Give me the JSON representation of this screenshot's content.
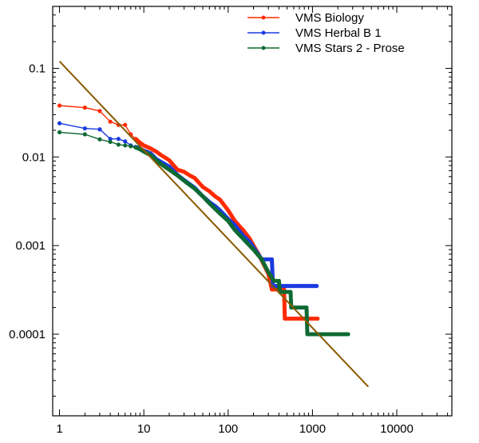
{
  "chart_data": {
    "type": "line",
    "title": "",
    "xlabel": "",
    "ylabel": "",
    "xscale": "log",
    "yscale": "log",
    "xlim": [
      0.83,
      45000
    ],
    "ylim": [
      1.2e-05,
      0.5
    ],
    "grid": false,
    "legend_position": "top-right",
    "x_ticks": [
      {
        "value": 1,
        "label": "1"
      },
      {
        "value": 10,
        "label": "10"
      },
      {
        "value": 100,
        "label": "100"
      },
      {
        "value": 1000,
        "label": "1000"
      },
      {
        "value": 10000,
        "label": "10000"
      }
    ],
    "y_ticks": [
      {
        "value": 0.1,
        "label": "0.1"
      },
      {
        "value": 0.01,
        "label": "0.01"
      },
      {
        "value": 0.001,
        "label": "0.001"
      },
      {
        "value": 0.0001,
        "label": "0.0001"
      }
    ],
    "series": [
      {
        "name": "VMS Biology",
        "color": "#ff2a00",
        "points": [
          [
            1,
            0.038
          ],
          [
            2,
            0.036
          ],
          [
            3,
            0.033
          ],
          [
            4,
            0.025
          ],
          [
            5,
            0.023
          ],
          [
            6,
            0.023
          ],
          [
            7,
            0.018
          ],
          [
            8,
            0.016
          ],
          [
            9,
            0.0145
          ],
          [
            10,
            0.0135
          ],
          [
            12,
            0.0125
          ],
          [
            14,
            0.0115
          ],
          [
            16,
            0.0105
          ],
          [
            18,
            0.0098
          ],
          [
            20,
            0.0092
          ],
          [
            25,
            0.0072
          ],
          [
            30,
            0.0068
          ],
          [
            35,
            0.0062
          ],
          [
            40,
            0.0058
          ],
          [
            50,
            0.0046
          ],
          [
            60,
            0.0041
          ],
          [
            70,
            0.0036
          ],
          [
            80,
            0.0033
          ],
          [
            100,
            0.0025
          ],
          [
            120,
            0.0019
          ],
          [
            150,
            0.0015
          ],
          [
            180,
            0.0012
          ],
          [
            200,
            0.001
          ],
          [
            230,
            0.0008
          ],
          [
            260,
            0.00063
          ],
          [
            300,
            0.00048
          ],
          [
            330,
            0.00032
          ],
          [
            460,
            0.00032
          ],
          [
            470,
            0.00015
          ],
          [
            1150,
            0.00015
          ]
        ]
      },
      {
        "name": "VMS Herbal B 1",
        "color": "#1a3ae0",
        "points": [
          [
            1,
            0.024
          ],
          [
            2,
            0.021
          ],
          [
            3,
            0.0205
          ],
          [
            4,
            0.016
          ],
          [
            5,
            0.016
          ],
          [
            6,
            0.015
          ],
          [
            7,
            0.0135
          ],
          [
            8,
            0.013
          ],
          [
            9,
            0.0125
          ],
          [
            10,
            0.0118
          ],
          [
            12,
            0.011
          ],
          [
            14,
            0.0095
          ],
          [
            16,
            0.0088
          ],
          [
            20,
            0.0078
          ],
          [
            25,
            0.0063
          ],
          [
            30,
            0.0055
          ],
          [
            40,
            0.0045
          ],
          [
            50,
            0.0036
          ],
          [
            60,
            0.0031
          ],
          [
            70,
            0.0028
          ],
          [
            80,
            0.0025
          ],
          [
            100,
            0.002
          ],
          [
            120,
            0.0017
          ],
          [
            150,
            0.0013
          ],
          [
            180,
            0.0011
          ],
          [
            200,
            0.00095
          ],
          [
            250,
            0.0007
          ],
          [
            330,
            0.0007
          ],
          [
            340,
            0.00035
          ],
          [
            1120,
            0.00035
          ]
        ]
      },
      {
        "name": "VMS Stars 2 - Prose",
        "color": "#0e6a32",
        "points": [
          [
            1,
            0.019
          ],
          [
            2,
            0.018
          ],
          [
            3,
            0.0158
          ],
          [
            4,
            0.0148
          ],
          [
            5,
            0.0138
          ],
          [
            6,
            0.0135
          ],
          [
            7,
            0.0132
          ],
          [
            8,
            0.0128
          ],
          [
            9,
            0.0122
          ],
          [
            10,
            0.0115
          ],
          [
            12,
            0.0105
          ],
          [
            14,
            0.0092
          ],
          [
            16,
            0.0083
          ],
          [
            20,
            0.0072
          ],
          [
            25,
            0.0062
          ],
          [
            30,
            0.0054
          ],
          [
            40,
            0.0044
          ],
          [
            50,
            0.0036
          ],
          [
            60,
            0.003
          ],
          [
            70,
            0.0026
          ],
          [
            80,
            0.0023
          ],
          [
            100,
            0.0019
          ],
          [
            120,
            0.0015
          ],
          [
            150,
            0.0012
          ],
          [
            180,
            0.001
          ],
          [
            200,
            0.0009
          ],
          [
            250,
            0.0007
          ],
          [
            300,
            0.0005
          ],
          [
            350,
            0.0004
          ],
          [
            400,
            0.0004
          ],
          [
            410,
            0.0003
          ],
          [
            550,
            0.0003
          ],
          [
            560,
            0.0002
          ],
          [
            850,
            0.0002
          ],
          [
            870,
            0.0001
          ],
          [
            2650,
            0.0001
          ]
        ]
      }
    ],
    "fit_line": {
      "color": "#8a5a00",
      "points": [
        [
          1,
          0.12
        ],
        [
          4600,
          2.55e-05
        ]
      ]
    }
  }
}
